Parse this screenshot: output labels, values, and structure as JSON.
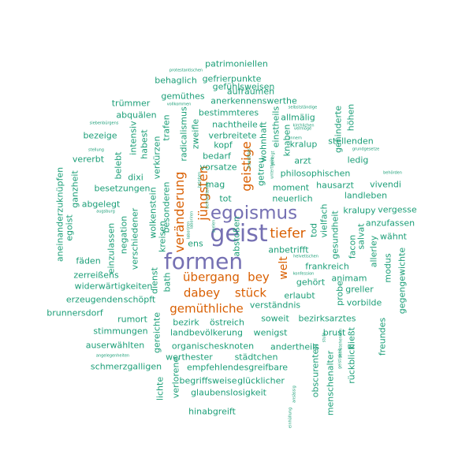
{
  "colors": {
    "teal": "#1b9e77",
    "orange": "#d95f02",
    "purple": "#7570b3",
    "background": "#ffffff"
  },
  "words": [
    {
      "text": "geist",
      "color": "#7570b3",
      "vertical": false
    },
    {
      "text": "formen",
      "color": "#7570b3",
      "vertical": false
    },
    {
      "text": "egoismus",
      "color": "#7570b3",
      "vertical": false
    },
    {
      "text": "tiefer",
      "color": "#d95f02",
      "vertical": false
    },
    {
      "text": "geistige",
      "color": "#d95f02",
      "vertical": true
    },
    {
      "text": "jüngsten",
      "color": "#d95f02",
      "vertical": true
    },
    {
      "text": "veränderung",
      "color": "#d95f02",
      "vertical": true
    },
    {
      "text": "übergang",
      "color": "#d95f02",
      "vertical": false
    },
    {
      "text": "bey",
      "color": "#d95f02",
      "vertical": false
    },
    {
      "text": "dabey",
      "color": "#d95f02",
      "vertical": false
    },
    {
      "text": "stück",
      "color": "#d95f02",
      "vertical": false
    },
    {
      "text": "welt",
      "color": "#d95f02",
      "vertical": true
    },
    {
      "text": "gemüthliche",
      "color": "#d95f02",
      "vertical": false
    },
    {
      "text": "patrimoniellen",
      "color": "#1b9e77",
      "vertical": false
    },
    {
      "text": "protestantischen",
      "color": "#1b9e77",
      "vertical": false
    },
    {
      "text": "gefrierpunkte",
      "color": "#1b9e77",
      "vertical": false
    },
    {
      "text": "behaglich",
      "color": "#1b9e77",
      "vertical": false
    },
    {
      "text": "aufräumen",
      "color": "#1b9e77",
      "vertical": false
    },
    {
      "text": "gefühlsweisen",
      "color": "#1b9e77",
      "vertical": false
    },
    {
      "text": "gemüthes",
      "color": "#1b9e77",
      "vertical": false
    },
    {
      "text": "anerkennenswerthe",
      "color": "#1b9e77",
      "vertical": false
    },
    {
      "text": "trümmer",
      "color": "#1b9e77",
      "vertical": false
    },
    {
      "text": "vollkommen",
      "color": "#1b9e77",
      "vertical": false
    },
    {
      "text": "bestimmteres",
      "color": "#1b9e77",
      "vertical": false
    },
    {
      "text": "abquälen",
      "color": "#1b9e77",
      "vertical": false
    },
    {
      "text": "nachtheile",
      "color": "#1b9e77",
      "vertical": false
    },
    {
      "text": "allmälig",
      "color": "#1b9e77",
      "vertical": false
    },
    {
      "text": "selbstständige",
      "color": "#1b9e77",
      "vertical": false
    },
    {
      "text": "siebenbürgens",
      "color": "#1b9e77",
      "vertical": false
    },
    {
      "text": "bezeige",
      "color": "#1b9e77",
      "vertical": false
    },
    {
      "text": "verbreitete",
      "color": "#1b9e77",
      "vertical": false
    },
    {
      "text": "kopf",
      "color": "#1b9e77",
      "vertical": false
    },
    {
      "text": "kralup",
      "color": "#1b9e77",
      "vertical": false
    },
    {
      "text": "vermöge",
      "color": "#1b9e77",
      "vertical": false
    },
    {
      "text": "kirchlichen",
      "color": "#1b9e77",
      "vertical": false
    },
    {
      "text": "innern",
      "color": "#1b9e77",
      "vertical": false
    },
    {
      "text": "stellenden",
      "color": "#1b9e77",
      "vertical": false
    },
    {
      "text": "grundgesetze",
      "color": "#1b9e77",
      "vertical": false
    },
    {
      "text": "stellung",
      "color": "#1b9e77",
      "vertical": false
    },
    {
      "text": "vererbt",
      "color": "#1b9e77",
      "vertical": false
    },
    {
      "text": "bedarf",
      "color": "#1b9e77",
      "vertical": false
    },
    {
      "text": "vorsatze",
      "color": "#1b9e77",
      "vertical": false
    },
    {
      "text": "ledig",
      "color": "#1b9e77",
      "vertical": false
    },
    {
      "text": "philosophischen",
      "color": "#1b9e77",
      "vertical": false
    },
    {
      "text": "behörden",
      "color": "#1b9e77",
      "vertical": false
    },
    {
      "text": "dixi",
      "color": "#1b9e77",
      "vertical": false
    },
    {
      "text": "arzt",
      "color": "#1b9e77",
      "vertical": false
    },
    {
      "text": "besetzungen",
      "color": "#1b9e77",
      "vertical": false
    },
    {
      "text": "mag",
      "color": "#1b9e77",
      "vertical": false
    },
    {
      "text": "moment",
      "color": "#1b9e77",
      "vertical": false
    },
    {
      "text": "hausarzt",
      "color": "#1b9e77",
      "vertical": false
    },
    {
      "text": "vivendi",
      "color": "#1b9e77",
      "vertical": false
    },
    {
      "text": "tot",
      "color": "#1b9e77",
      "vertical": false
    },
    {
      "text": "landleben",
      "color": "#1b9e77",
      "vertical": false
    },
    {
      "text": "abgelegt",
      "color": "#1b9e77",
      "vertical": false
    },
    {
      "text": "neuerlich",
      "color": "#1b9e77",
      "vertical": false
    },
    {
      "text": "augsburg",
      "color": "#1b9e77",
      "vertical": false
    },
    {
      "text": "kralupy",
      "color": "#1b9e77",
      "vertical": false
    },
    {
      "text": "vergesse",
      "color": "#1b9e77",
      "vertical": false
    },
    {
      "text": "anzufassen",
      "color": "#1b9e77",
      "vertical": false
    },
    {
      "text": "wähnt",
      "color": "#1b9e77",
      "vertical": false
    },
    {
      "text": "anbetrifft",
      "color": "#1b9e77",
      "vertical": false
    },
    {
      "text": "ens",
      "color": "#1b9e77",
      "vertical": false
    },
    {
      "text": "helvetischen",
      "color": "#1b9e77",
      "vertical": false
    },
    {
      "text": "fäden",
      "color": "#1b9e77",
      "vertical": false
    },
    {
      "text": "frankreich",
      "color": "#1b9e77",
      "vertical": false
    },
    {
      "text": "konfession",
      "color": "#1b9e77",
      "vertical": false
    },
    {
      "text": "zerreißens",
      "color": "#1b9e77",
      "vertical": false
    },
    {
      "text": "animam",
      "color": "#1b9e77",
      "vertical": false
    },
    {
      "text": "gehört",
      "color": "#1b9e77",
      "vertical": false
    },
    {
      "text": "widerwärtigkeiten",
      "color": "#1b9e77",
      "vertical": false
    },
    {
      "text": "greller",
      "color": "#1b9e77",
      "vertical": false
    },
    {
      "text": "erlaubt",
      "color": "#1b9e77",
      "vertical": false
    },
    {
      "text": "erzeugenden",
      "color": "#1b9e77",
      "vertical": false
    },
    {
      "text": "schöpft",
      "color": "#1b9e77",
      "vertical": false
    },
    {
      "text": "verständnis",
      "color": "#1b9e77",
      "vertical": false
    },
    {
      "text": "vorbilde",
      "color": "#1b9e77",
      "vertical": false
    },
    {
      "text": "brunnersdorf",
      "color": "#1b9e77",
      "vertical": false
    },
    {
      "text": "soweit",
      "color": "#1b9e77",
      "vertical": false
    },
    {
      "text": "bezirksarztes",
      "color": "#1b9e77",
      "vertical": false
    },
    {
      "text": "rumort",
      "color": "#1b9e77",
      "vertical": false
    },
    {
      "text": "bezirk",
      "color": "#1b9e77",
      "vertical": false
    },
    {
      "text": "östreich",
      "color": "#1b9e77",
      "vertical": false
    },
    {
      "text": "stimmungen",
      "color": "#1b9e77",
      "vertical": false
    },
    {
      "text": "landbevölkerung",
      "color": "#1b9e77",
      "vertical": false
    },
    {
      "text": "wenigst",
      "color": "#1b9e77",
      "vertical": false
    },
    {
      "text": "brust",
      "color": "#1b9e77",
      "vertical": false
    },
    {
      "text": "fließt",
      "color": "#1b9e77",
      "vertical": true
    },
    {
      "text": "auserwählten",
      "color": "#1b9e77",
      "vertical": false
    },
    {
      "text": "organischesknoten",
      "color": "#1b9e77",
      "vertical": false
    },
    {
      "text": "andertheils",
      "color": "#1b9e77",
      "vertical": false
    },
    {
      "text": "werthester",
      "color": "#1b9e77",
      "vertical": false
    },
    {
      "text": "städtchen",
      "color": "#1b9e77",
      "vertical": false
    },
    {
      "text": "angelegenheiten",
      "color": "#1b9e77",
      "vertical": false
    },
    {
      "text": "schmerzgalligen",
      "color": "#1b9e77",
      "vertical": false
    },
    {
      "text": "empfehlendesgreifbare",
      "color": "#1b9e77",
      "vertical": false
    },
    {
      "text": "begriffsweise",
      "color": "#1b9e77",
      "vertical": false
    },
    {
      "text": "glücklicher",
      "color": "#1b9e77",
      "vertical": false
    },
    {
      "text": "glaubenslosigkeit",
      "color": "#1b9e77",
      "vertical": false
    },
    {
      "text": "hinabgreift",
      "color": "#1b9e77",
      "vertical": false
    },
    {
      "text": "einhüllung",
      "color": "#1b9e77",
      "vertical": true
    },
    {
      "text": "aneinanderzuknüpfen",
      "color": "#1b9e77",
      "vertical": true
    },
    {
      "text": "ganzheit",
      "color": "#1b9e77",
      "vertical": true
    },
    {
      "text": "egoist",
      "color": "#1b9e77",
      "vertical": true
    },
    {
      "text": "belebt",
      "color": "#1b9e77",
      "vertical": true
    },
    {
      "text": "intensiv",
      "color": "#1b9e77",
      "vertical": true
    },
    {
      "text": "habest",
      "color": "#1b9e77",
      "vertical": true
    },
    {
      "text": "einzulassen",
      "color": "#1b9e77",
      "vertical": true
    },
    {
      "text": "negation",
      "color": "#1b9e77",
      "vertical": true
    },
    {
      "text": "verschiedener",
      "color": "#1b9e77",
      "vertical": true
    },
    {
      "text": "verkürzen",
      "color": "#1b9e77",
      "vertical": true
    },
    {
      "text": "trafen",
      "color": "#1b9e77",
      "vertical": true
    },
    {
      "text": "wolkenstein",
      "color": "#1b9e77",
      "vertical": true
    },
    {
      "text": "besonderen",
      "color": "#1b9e77",
      "vertical": true
    },
    {
      "text": "kreisen",
      "color": "#1b9e77",
      "vertical": true
    },
    {
      "text": "radicalismus",
      "color": "#1b9e77",
      "vertical": true
    },
    {
      "text": "zweifle",
      "color": "#1b9e77",
      "vertical": true
    },
    {
      "text": "dienst",
      "color": "#1b9e77",
      "vertical": true
    },
    {
      "text": "bath",
      "color": "#1b9e77",
      "vertical": true
    },
    {
      "text": "gereichte",
      "color": "#1b9e77",
      "vertical": true
    },
    {
      "text": "lichte",
      "color": "#1b9e77",
      "vertical": true
    },
    {
      "text": "verlorene",
      "color": "#1b9e77",
      "vertical": true
    },
    {
      "text": "einstheils",
      "color": "#1b9e77",
      "vertical": true
    },
    {
      "text": "wohnhaft",
      "color": "#1b9e77",
      "vertical": true
    },
    {
      "text": "knaben",
      "color": "#1b9e77",
      "vertical": true
    },
    {
      "text": "gehinderte",
      "color": "#1b9e77",
      "vertical": true
    },
    {
      "text": "höhen",
      "color": "#1b9e77",
      "vertical": true
    },
    {
      "text": "getreu",
      "color": "#1b9e77",
      "vertical": true
    },
    {
      "text": "tod",
      "color": "#1b9e77",
      "vertical": true
    },
    {
      "text": "vielfach",
      "color": "#1b9e77",
      "vertical": true
    },
    {
      "text": "gesundheit",
      "color": "#1b9e77",
      "vertical": true
    },
    {
      "text": "facon",
      "color": "#1b9e77",
      "vertical": true
    },
    {
      "text": "salvat",
      "color": "#1b9e77",
      "vertical": true
    },
    {
      "text": "allerley",
      "color": "#1b9e77",
      "vertical": true
    },
    {
      "text": "modus",
      "color": "#1b9e77",
      "vertical": true
    },
    {
      "text": "gegengewichte",
      "color": "#1b9e77",
      "vertical": true
    },
    {
      "text": "probe",
      "color": "#1b9e77",
      "vertical": true
    },
    {
      "text": "freundes",
      "color": "#1b9e77",
      "vertical": true
    },
    {
      "text": "rückblick",
      "color": "#1b9e77",
      "vertical": true
    },
    {
      "text": "menschenalter",
      "color": "#1b9e77",
      "vertical": true
    },
    {
      "text": "obscurenten",
      "color": "#1b9e77",
      "vertical": true
    },
    {
      "text": "geistigkeit",
      "color": "#1b9e77",
      "vertical": true
    },
    {
      "text": "stufe",
      "color": "#1b9e77",
      "vertical": true
    },
    {
      "text": "fernstehenden",
      "color": "#1b9e77",
      "vertical": true
    },
    {
      "text": "befruchtende",
      "color": "#1b9e77",
      "vertical": true
    },
    {
      "text": "bewußtlos",
      "color": "#1b9e77",
      "vertical": true
    },
    {
      "text": "seelen",
      "color": "#1b9e77",
      "vertical": true
    },
    {
      "text": "laboriren",
      "color": "#1b9e77",
      "vertical": true
    },
    {
      "text": "beleben",
      "color": "#1b9e77",
      "vertical": true
    },
    {
      "text": "laboriren",
      "color": "#1b9e77",
      "vertical": true
    },
    {
      "text": "ansässig",
      "color": "#1b9e77",
      "vertical": true
    },
    {
      "text": "untertheile",
      "color": "#1b9e77",
      "vertical": true
    },
    {
      "text": "geneigt",
      "color": "#1b9e77",
      "vertical": true
    },
    {
      "text": "abstoßen",
      "color": "#1b9e77",
      "vertical": true
    }
  ]
}
